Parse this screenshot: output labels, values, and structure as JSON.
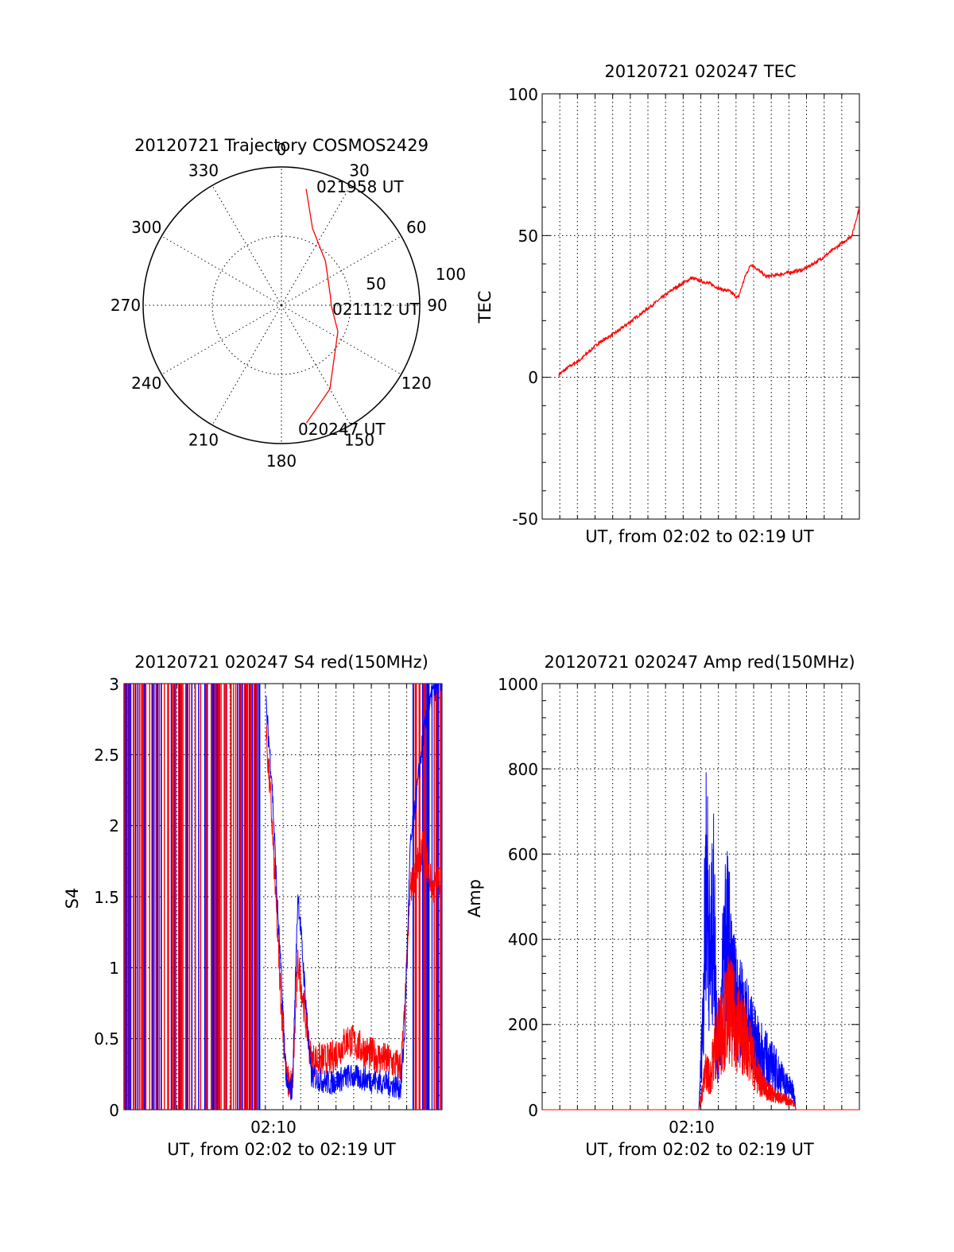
{
  "colors": {
    "red": "#ff0000",
    "blue": "#0000ff",
    "axis": "#000000"
  },
  "chart_data": [
    {
      "type": "polar",
      "title": "20120721 Trajectory COSMOS2429",
      "azimuth_labels": [
        "0",
        "30",
        "60",
        "90",
        "120",
        "150",
        "180",
        "210",
        "240",
        "270",
        "300",
        "330"
      ],
      "radial_labels": [
        "50",
        "100"
      ],
      "rlim": [
        0,
        100
      ],
      "series": [
        {
          "color": "red",
          "points": [
            {
              "az": 12,
              "zen": 86,
              "time": "021958 UT"
            },
            {
              "az": 22,
              "zen": 60
            },
            {
              "az": 45,
              "zen": 45
            },
            {
              "az": 80,
              "zen": 36
            },
            {
              "az": 90,
              "zen": 36,
              "time": "021112 UT"
            },
            {
              "az": 115,
              "zen": 45
            },
            {
              "az": 150,
              "zen": 70
            },
            {
              "az": 168,
              "zen": 87,
              "time": "020247 UT"
            }
          ]
        }
      ],
      "point_labels": [
        "021958 UT",
        "021112 UT",
        "020247 UT"
      ]
    },
    {
      "type": "line",
      "title": "20120721 020247 TEC",
      "xlabel": "UT, from 02:02 to 02:19 UT",
      "ylabel": "TEC",
      "ylim": [
        -50,
        100
      ],
      "xlim": [
        2.0,
        19.0
      ],
      "yticks": [
        "100",
        "50",
        "0",
        "-50"
      ],
      "xticks": [],
      "series": [
        {
          "color": "red",
          "x": [
            2.9,
            3.5,
            4.0,
            5.0,
            6.0,
            7.0,
            8.0,
            9.0,
            10.0,
            11.0,
            11.6,
            12.0,
            12.5,
            12.9,
            13.2,
            14.0,
            14.5,
            16.0,
            17.0,
            18.0,
            18.6,
            19.0
          ],
          "y": [
            1,
            4,
            6,
            12,
            16,
            21,
            26,
            31,
            35,
            33,
            31,
            30.5,
            28,
            36,
            40,
            35.5,
            36,
            38,
            42,
            47,
            50,
            60
          ]
        }
      ]
    },
    {
      "type": "line",
      "title": "20120721 020247 S4 red(150MHz)",
      "xlabel": "UT, from 02:02 to 02:19 UT",
      "ylabel": "S4",
      "ylim": [
        0,
        3
      ],
      "xlim": [
        2.0,
        19.0
      ],
      "yticks": [
        "3",
        "2.5",
        "2",
        "1.5",
        "1",
        "0.5",
        "0"
      ],
      "xticks": [
        "02:10"
      ],
      "series": [
        {
          "name": "",
          "color": "blue",
          "x": [
            9.6,
            9.9,
            10.2,
            10.4,
            10.7,
            11.0,
            11.3,
            12.0,
            13.0,
            14.0,
            15.0,
            16.0,
            16.8,
            17.0,
            17.3,
            18.0,
            18.5,
            19.0
          ],
          "y": [
            2.8,
            2.3,
            1.4,
            0.9,
            0.12,
            0.1,
            1.5,
            0.2,
            0.15,
            0.2,
            0.18,
            0.15,
            0.12,
            0.5,
            1.8,
            2.6,
            2.9,
            3.0
          ]
        },
        {
          "name": "",
          "color": "red",
          "x": [
            9.6,
            9.9,
            10.2,
            10.4,
            10.7,
            11.0,
            11.3,
            12.0,
            13.0,
            14.0,
            15.0,
            16.0,
            16.8,
            17.0,
            17.3,
            18.0,
            18.5,
            19.0
          ],
          "y": [
            2.6,
            2.0,
            1.2,
            0.7,
            0.15,
            0.12,
            1.0,
            0.3,
            0.3,
            0.45,
            0.35,
            0.3,
            0.25,
            0.6,
            1.5,
            1.8,
            1.5,
            1.6
          ]
        }
      ]
    },
    {
      "type": "line",
      "title": "20120721 020247 Amp red(150MHz)",
      "xlabel": "UT, from 02:02 to 02:19 UT",
      "ylabel": "Amp",
      "ylim": [
        0,
        1000
      ],
      "xlim": [
        2.0,
        19.0
      ],
      "yticks": [
        "1000",
        "800",
        "600",
        "400",
        "200",
        "0"
      ],
      "xticks": [
        "02:10"
      ],
      "series": [
        {
          "name": "",
          "color": "blue",
          "x": [
            2.0,
            10.4,
            10.6,
            10.8,
            11.0,
            11.2,
            11.4,
            11.6,
            11.8,
            12.0,
            12.2,
            12.5,
            13.0,
            13.5,
            14.0,
            14.5,
            15.0,
            15.5,
            15.6,
            19.0
          ],
          "y": [
            0,
            0,
            250,
            720,
            420,
            580,
            150,
            300,
            540,
            480,
            350,
            300,
            250,
            180,
            150,
            120,
            80,
            50,
            0,
            0
          ]
        },
        {
          "name": "",
          "color": "red",
          "x": [
            2.0,
            10.4,
            10.6,
            10.8,
            11.0,
            11.3,
            11.6,
            12.0,
            12.4,
            12.8,
            13.2,
            13.6,
            14.0,
            14.5,
            15.0,
            15.5,
            15.6,
            19.0
          ],
          "y": [
            0,
            0,
            60,
            120,
            90,
            200,
            230,
            300,
            250,
            220,
            160,
            90,
            60,
            40,
            30,
            20,
            0,
            0
          ]
        }
      ]
    }
  ]
}
